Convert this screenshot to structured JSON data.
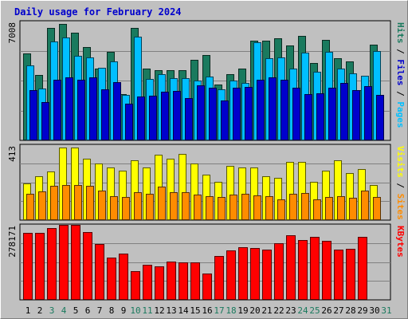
{
  "chart_data": {
    "type": "bar",
    "title": "Daily usage for February 2024",
    "x": [
      1,
      2,
      3,
      4,
      5,
      6,
      7,
      8,
      9,
      10,
      11,
      12,
      13,
      14,
      15,
      16,
      17,
      18,
      19,
      20,
      21,
      22,
      23,
      24,
      25,
      26,
      27,
      28,
      29,
      30,
      31
    ],
    "weekend_days": [
      3,
      4,
      10,
      11,
      17,
      18,
      24,
      25,
      31
    ],
    "panels": [
      {
        "name": "hits",
        "ymax_label": "7008",
        "ymax": 7008,
        "right_label": [
          "Pages",
          "Files",
          "Hits"
        ],
        "series": [
          {
            "name": "Hits",
            "color": "#1a7a5e",
            "values": [
              5250,
              3950,
              6780,
              7010,
              6470,
              5630,
              4320,
              5320,
              2790,
              6770,
              4320,
              4240,
              4240,
              4240,
              4870,
              5140,
              3350,
              4000,
              4340,
              5990,
              6000,
              6120,
              5730,
              6300,
              4660,
              6030,
              4940,
              4740,
              3030,
              5770,
              null
            ]
          },
          {
            "name": "Files",
            "color": "#00bfff",
            "values": [
              4510,
              3140,
              5940,
              6170,
              5080,
              5010,
              4380,
              4750,
              2730,
              6220,
              3690,
              3980,
              3760,
              3760,
              3620,
              3830,
              3090,
              3600,
              3440,
              5890,
              4940,
              4990,
              4340,
              5260,
              4110,
              5310,
              4300,
              4050,
              3890,
              5380,
              null
            ]
          },
          {
            "name": "Pages",
            "color": "#0000cc",
            "values": [
              3010,
              2280,
              3640,
              3800,
              3650,
              3770,
              3070,
              3510,
              2230,
              2660,
              2700,
              2920,
              2960,
              2530,
              3290,
              3180,
              2410,
              3190,
              3200,
              3640,
              3790,
              3630,
              3190,
              2800,
              2840,
              3190,
              3450,
              3000,
              3260,
              2750,
              null
            ]
          }
        ]
      },
      {
        "name": "visits",
        "ymax_label": "413",
        "ymax": 413,
        "right_label": [
          "Sites",
          "Visits"
        ],
        "series": [
          {
            "name": "Visits",
            "color": "#ffff00",
            "values": [
              210,
              250,
              275,
              413,
              413,
              350,
              320,
              300,
              280,
              340,
              300,
              370,
              350,
              375,
              320,
              260,
              220,
              310,
              300,
              300,
              250,
              240,
              330,
              330,
              220,
              280,
              340,
              270,
              290,
              200,
              null
            ]
          },
          {
            "name": "Sites",
            "color": "#ff8c00",
            "values": [
              150,
              165,
              195,
              200,
              200,
              195,
              170,
              135,
              130,
              160,
              150,
              190,
              160,
              160,
              145,
              135,
              130,
              145,
              150,
              140,
              135,
              120,
              150,
              155,
              120,
              130,
              135,
              125,
              170,
              130,
              null
            ]
          }
        ]
      },
      {
        "name": "kbytes",
        "ymax_label": "278171",
        "ymax": 278171,
        "right_label": [
          "KBytes"
        ],
        "series": [
          {
            "name": "KBytes",
            "color": "#ff0000",
            "values": [
              256000,
              256000,
              274000,
              287000,
              287000,
              259000,
              214000,
              161000,
              176000,
              110000,
              136000,
              128000,
              147000,
              143000,
              143000,
              100000,
              169000,
              188000,
              201000,
              199000,
              193000,
              216000,
              248000,
              228000,
              243000,
              227000,
              194000,
              195000,
              240000,
              null,
              null
            ]
          }
        ]
      }
    ]
  }
}
